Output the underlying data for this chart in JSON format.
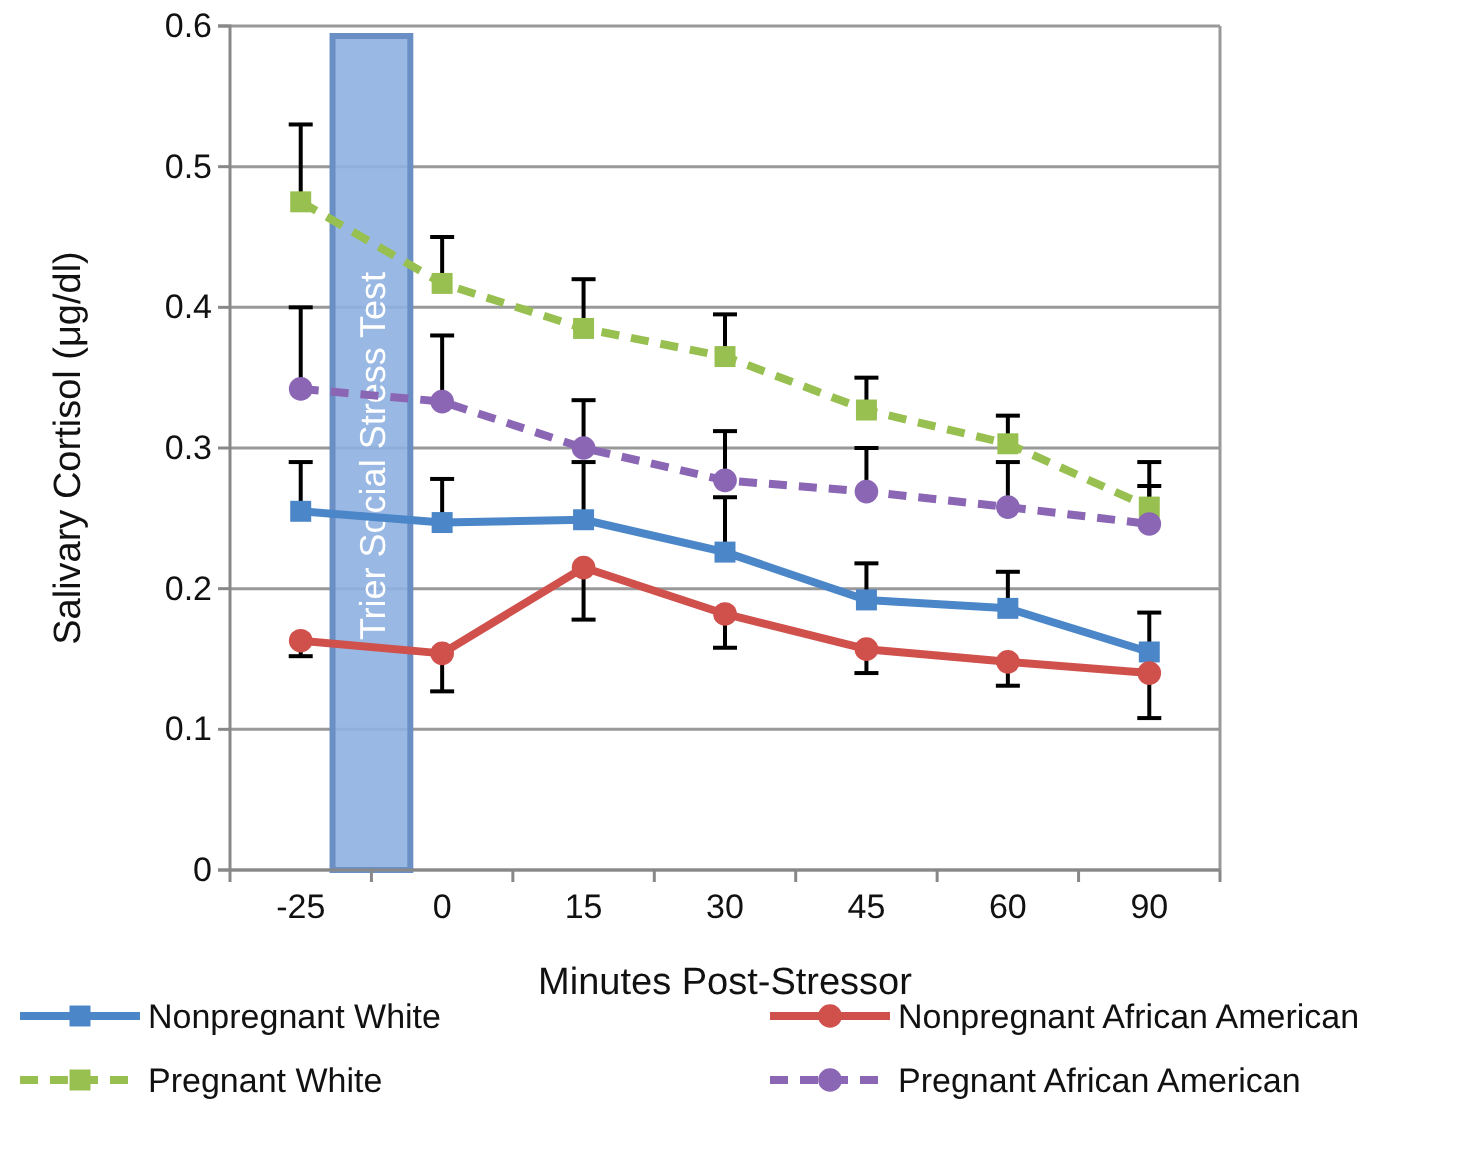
{
  "chart_data": {
    "type": "line",
    "xlabel": "Minutes Post-Stressor",
    "ylabel": "Salivary Cortisol (μg/dl)",
    "categories": [
      "-25",
      "0",
      "15",
      "30",
      "45",
      "60",
      "90"
    ],
    "ylim": [
      0,
      0.6
    ],
    "yticks": [
      0,
      0.1,
      0.2,
      0.3,
      0.4,
      0.5,
      0.6
    ],
    "grid": "y",
    "legend": "bottom",
    "bands": [
      {
        "axis": "x",
        "from": "-25",
        "to": "0",
        "label": "Trier Social Stress Test",
        "color": "#8eb0e0"
      }
    ],
    "series": [
      {
        "name": "Nonpregnant White",
        "color": "#4a86c8",
        "marker": "square",
        "line_style": "solid",
        "values": [
          0.255,
          0.247,
          0.249,
          0.226,
          0.192,
          0.186,
          0.155
        ],
        "errors": [
          [
            0.255,
            0.29
          ],
          [
            0.247,
            0.278
          ],
          [
            0.249,
            0.29
          ],
          [
            0.226,
            0.265
          ],
          [
            0.192,
            0.218
          ],
          [
            0.186,
            0.212
          ],
          [
            0.155,
            0.183
          ]
        ]
      },
      {
        "name": "Nonpregnant African American",
        "color": "#d0504c",
        "marker": "circle",
        "line_style": "solid",
        "values": [
          0.163,
          0.154,
          0.215,
          0.182,
          0.157,
          0.148,
          0.14
        ],
        "errors": [
          [
            0.152,
            0.163
          ],
          [
            0.127,
            0.154
          ],
          [
            0.178,
            0.215
          ],
          [
            0.158,
            0.182
          ],
          [
            0.14,
            0.157
          ],
          [
            0.131,
            0.148
          ],
          [
            0.108,
            0.14
          ]
        ]
      },
      {
        "name": "Pregnant White",
        "color": "#98c050",
        "marker": "square",
        "line_style": "dashed",
        "values": [
          0.475,
          0.417,
          0.385,
          0.365,
          0.327,
          0.303,
          0.258
        ],
        "errors": [
          [
            0.475,
            0.53
          ],
          [
            0.417,
            0.45
          ],
          [
            0.385,
            0.42
          ],
          [
            0.365,
            0.395
          ],
          [
            0.327,
            0.35
          ],
          [
            0.303,
            0.323
          ],
          [
            0.258,
            0.29
          ]
        ]
      },
      {
        "name": "Pregnant African American",
        "color": "#8a66b4",
        "marker": "circle",
        "line_style": "dashed",
        "values": [
          0.342,
          0.333,
          0.3,
          0.277,
          0.269,
          0.258,
          0.246
        ],
        "errors": [
          [
            0.342,
            0.4
          ],
          [
            0.333,
            0.38
          ],
          [
            0.3,
            0.334
          ],
          [
            0.277,
            0.312
          ],
          [
            0.269,
            0.3
          ],
          [
            0.258,
            0.29
          ],
          [
            0.246,
            0.273
          ]
        ]
      }
    ]
  }
}
